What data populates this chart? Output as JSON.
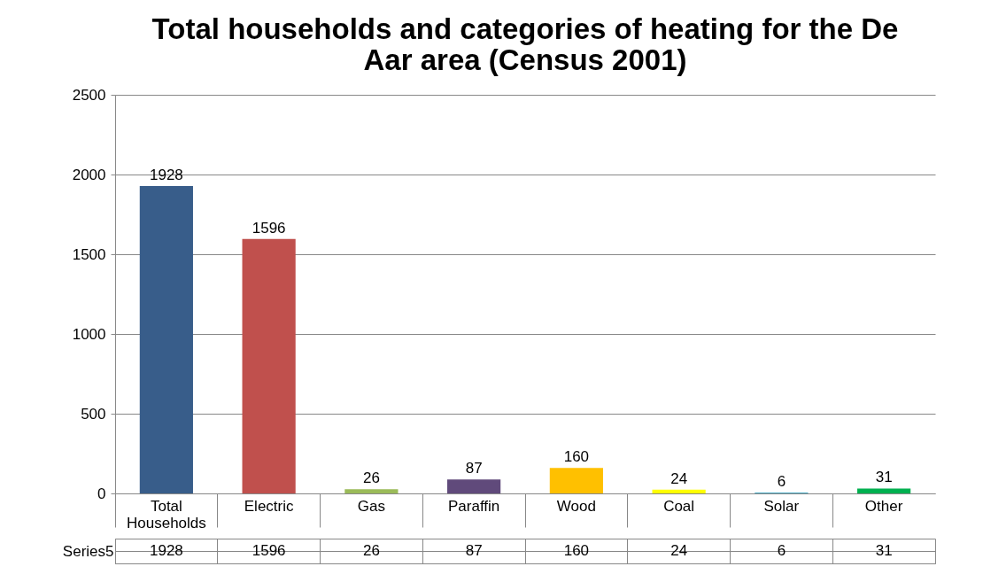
{
  "chart_data": [
    {
      "type": "bar",
      "title": "Total households and categories of heating for the De Aar area (Census 2001)",
      "categories": [
        "Total Households",
        "Electric",
        "Gas",
        "Paraffin",
        "Wood",
        "Coal",
        "Solar",
        "Other"
      ],
      "series": [
        {
          "name": "Series5",
          "values": [
            1928,
            1596,
            26,
            87,
            160,
            24,
            6,
            31
          ],
          "colors": [
            "#385d8a",
            "#c0504d",
            "#9bbb59",
            "#604a7b",
            "#ffc000",
            "#ffff00",
            "#4bacc6",
            "#00b050"
          ]
        }
      ],
      "ylim": [
        0,
        2500
      ],
      "yticks": [
        0,
        500,
        1000,
        1500,
        2000,
        2500
      ],
      "grid": "y",
      "data_labels": true,
      "legend": false
    },
    {
      "type": "other",
      "annotations": [
        "1928",
        "1596",
        "26",
        "87",
        "160",
        "24",
        "6",
        "31"
      ]
    }
  ]
}
